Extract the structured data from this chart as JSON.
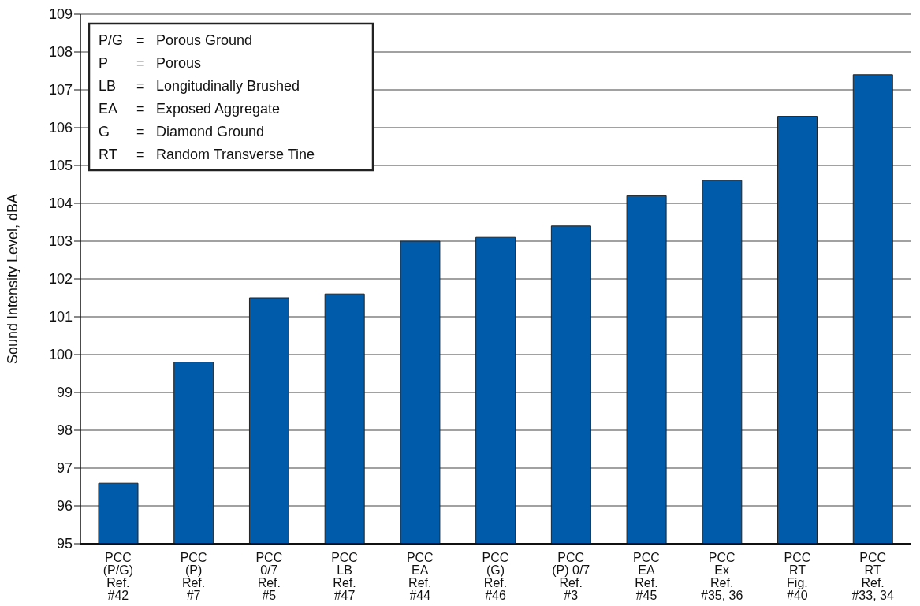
{
  "chart_data": {
    "type": "bar",
    "ylabel": "Sound Intensity Level, dBA",
    "categories": [
      "PCC\n(P/G)\nRef.\n#42",
      "PCC\n(P)\nRef.\n#7",
      "PCC\n0/7\nRef.\n#5",
      "PCC\nLB\nRef.\n#47",
      "PCC\nEA\nRef.\n#44",
      "PCC\n(G)\nRef.\n#46",
      "PCC\n(P) 0/7\nRef.\n#3",
      "PCC\nEA\nRef.\n#45",
      "PCC\nEx\nRef.\n#35, 36",
      "PCC\nRT\nFig.\n#40",
      "PCC\nRT\nRef.\n#33, 34"
    ],
    "values": [
      96.6,
      99.8,
      101.5,
      101.6,
      103.0,
      103.1,
      103.4,
      104.2,
      104.6,
      106.3,
      107.4
    ],
    "color": "#005bab",
    "ylim": [
      95,
      109
    ],
    "yticks": [
      95,
      96,
      97,
      98,
      99,
      100,
      101,
      102,
      103,
      104,
      105,
      106,
      107,
      108,
      109
    ],
    "grid": "y",
    "annotations": [
      "P/G = Porous Ground",
      "P = Porous",
      "LB = Longitudinally Brushed",
      "EA = Exposed Aggregate",
      "G = Diamond Ground",
      "RT = Random Transverse Tine"
    ]
  }
}
